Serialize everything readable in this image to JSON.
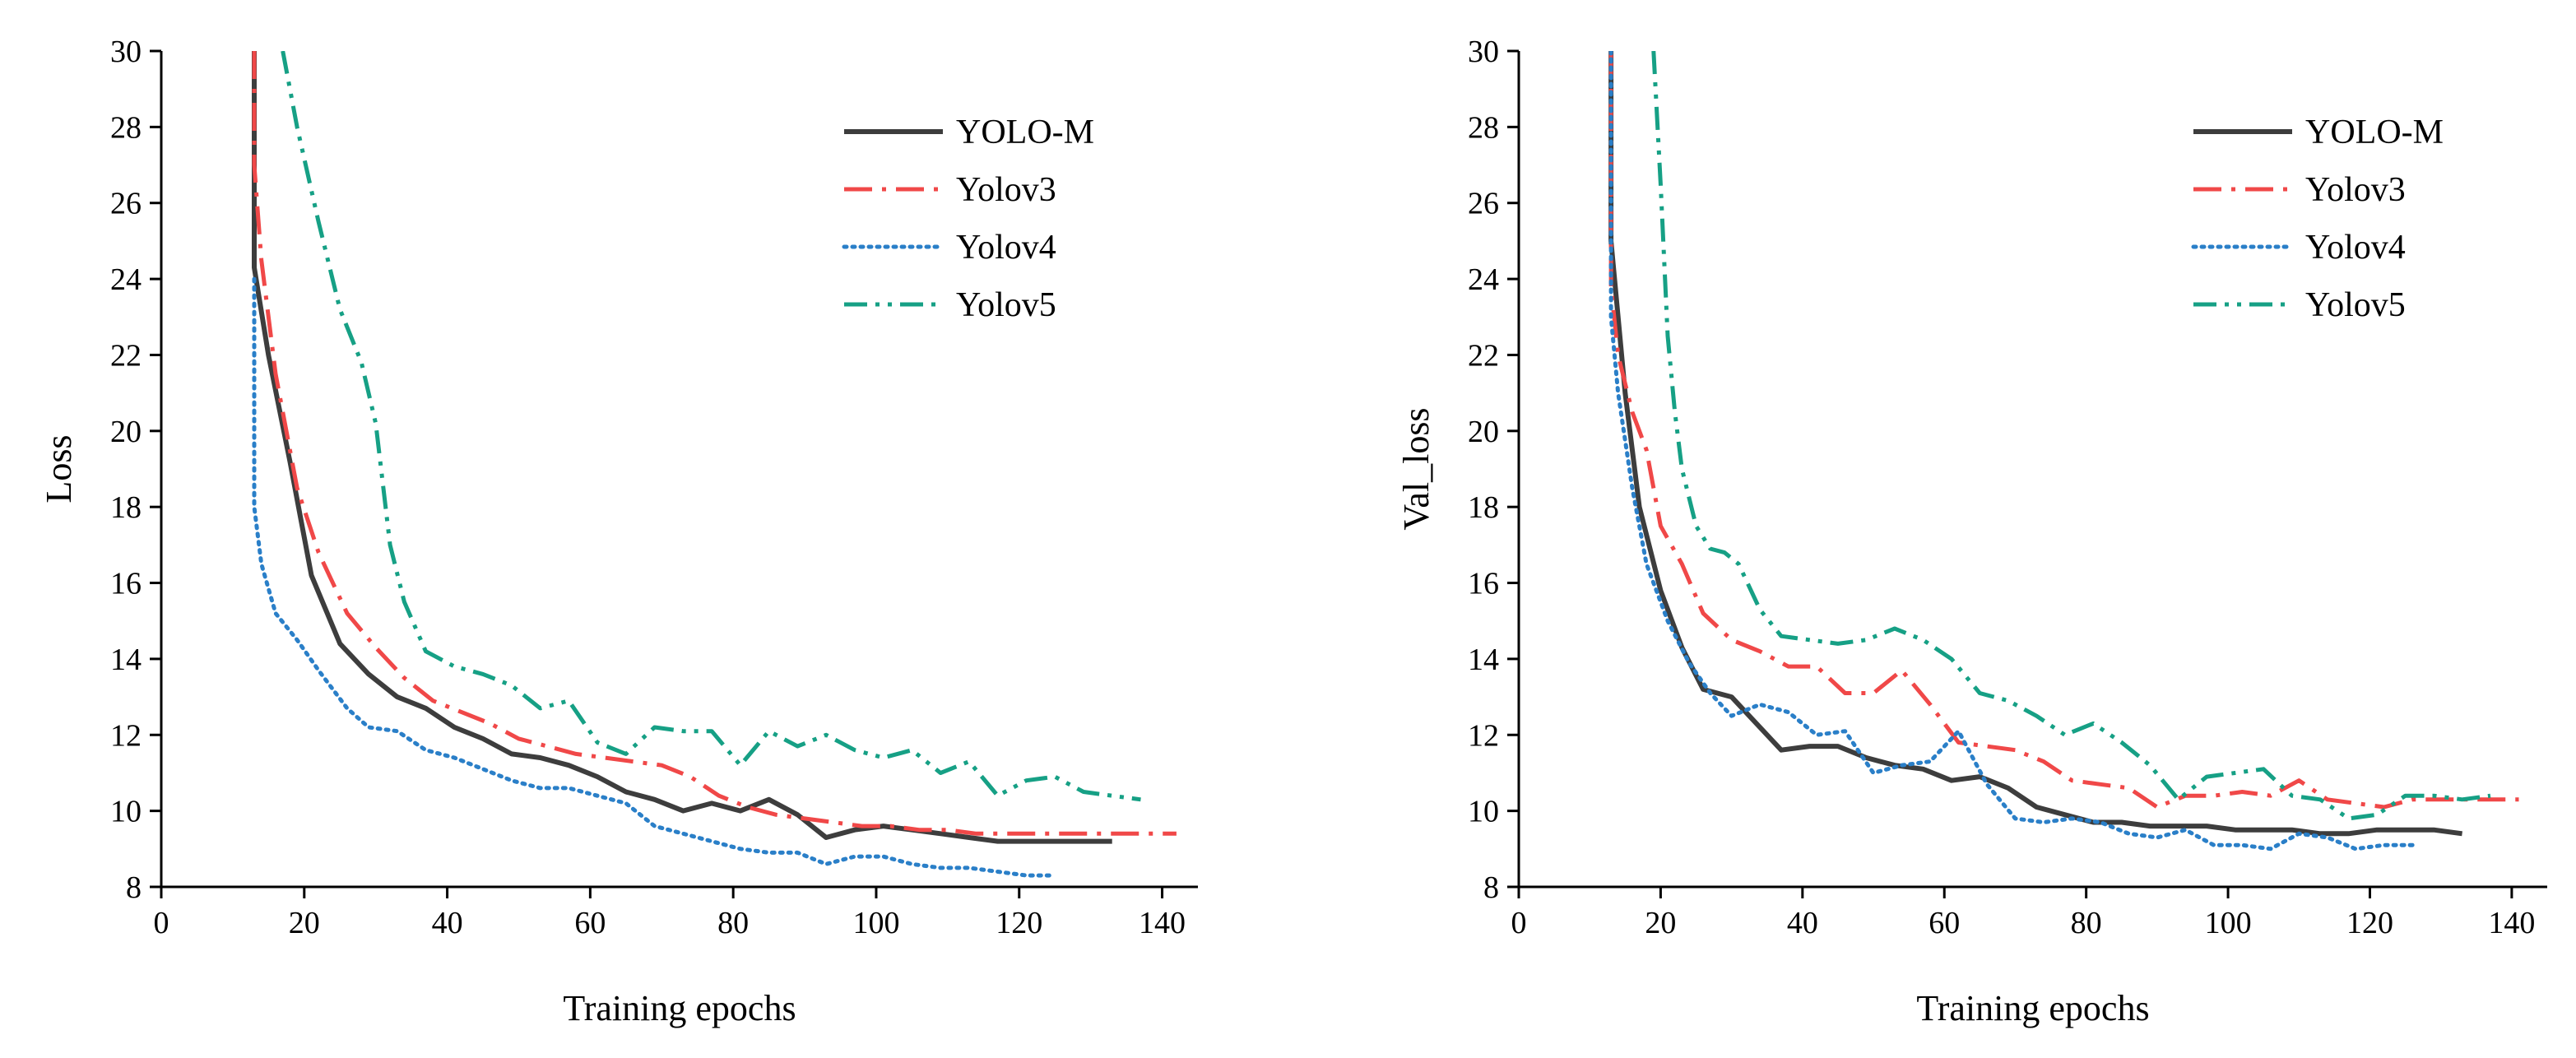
{
  "chart_data": [
    {
      "type": "line",
      "id": "loss",
      "title": "",
      "xlabel": "Training epochs",
      "ylabel": "Loss",
      "xlim": [
        0,
        145
      ],
      "ylim": [
        8,
        30
      ],
      "xticks": [
        0,
        20,
        40,
        60,
        80,
        100,
        120,
        140
      ],
      "yticks": [
        8,
        10,
        12,
        14,
        16,
        18,
        20,
        22,
        24,
        26,
        28,
        30
      ],
      "legend_position": "top-right",
      "series": [
        {
          "name": "YOLO-M",
          "color": "#3d3d3d",
          "dash": "solid",
          "x": [
            13,
            13,
            15,
            18,
            21,
            25,
            29,
            33,
            37,
            41,
            45,
            49,
            53,
            57,
            61,
            65,
            69,
            73,
            77,
            81,
            85,
            89,
            93,
            97,
            101,
            105,
            109,
            113,
            117,
            121,
            125,
            129,
            133
          ],
          "y": [
            30,
            24.3,
            22.0,
            19.2,
            16.2,
            14.4,
            13.6,
            13.0,
            12.7,
            12.2,
            11.9,
            11.5,
            11.4,
            11.2,
            10.9,
            10.5,
            10.3,
            10.0,
            10.2,
            10.0,
            10.3,
            9.9,
            9.3,
            9.5,
            9.6,
            9.5,
            9.4,
            9.3,
            9.2,
            9.2,
            9.2,
            9.2,
            9.2
          ]
        },
        {
          "name": "Yolov3",
          "color": "#f04848",
          "dash": "dashdot",
          "x": [
            13,
            13,
            14,
            16,
            19,
            22,
            26,
            30,
            34,
            38,
            42,
            46,
            50,
            54,
            58,
            62,
            66,
            70,
            74,
            78,
            82,
            86,
            90,
            94,
            98,
            102,
            106,
            110,
            114,
            118,
            122,
            126,
            130,
            134,
            138,
            142
          ],
          "y": [
            30,
            27.0,
            24.5,
            21.5,
            18.5,
            16.8,
            15.2,
            14.3,
            13.5,
            12.9,
            12.6,
            12.3,
            11.9,
            11.7,
            11.5,
            11.4,
            11.3,
            11.2,
            10.9,
            10.4,
            10.1,
            9.9,
            9.8,
            9.7,
            9.6,
            9.6,
            9.5,
            9.5,
            9.4,
            9.4,
            9.4,
            9.4,
            9.4,
            9.4,
            9.4,
            9.4
          ]
        },
        {
          "name": "Yolov4",
          "color": "#2a7fc8",
          "dash": "dotted",
          "x": [
            13,
            13,
            14,
            16,
            19,
            22,
            26,
            29,
            33,
            37,
            41,
            45,
            49,
            53,
            57,
            61,
            65,
            69,
            73,
            77,
            81,
            85,
            89,
            93,
            97,
            101,
            105,
            109,
            113,
            117,
            121,
            125
          ],
          "y": [
            24.0,
            18.0,
            16.5,
            15.2,
            14.5,
            13.7,
            12.7,
            12.2,
            12.1,
            11.6,
            11.4,
            11.1,
            10.8,
            10.6,
            10.6,
            10.4,
            10.2,
            9.6,
            9.4,
            9.2,
            9.0,
            8.9,
            8.9,
            8.6,
            8.8,
            8.8,
            8.6,
            8.5,
            8.5,
            8.4,
            8.3,
            8.3
          ]
        },
        {
          "name": "Yolov5",
          "color": "#16a085",
          "dash": "dashdotdot",
          "x": [
            17,
            19,
            22,
            25,
            28,
            30,
            32,
            34,
            37,
            41,
            45,
            49,
            53,
            57,
            61,
            65,
            69,
            73,
            77,
            81,
            85,
            89,
            93,
            97,
            101,
            105,
            109,
            113,
            117,
            121,
            125,
            129,
            133,
            137
          ],
          "y": [
            30,
            28.0,
            25.5,
            23.2,
            21.8,
            20.2,
            17.0,
            15.5,
            14.2,
            13.8,
            13.6,
            13.3,
            12.7,
            12.9,
            11.8,
            11.5,
            12.2,
            12.1,
            12.1,
            11.2,
            12.1,
            11.7,
            12.0,
            11.6,
            11.4,
            11.6,
            11.0,
            11.3,
            10.4,
            10.8,
            10.9,
            10.5,
            10.4,
            10.3
          ]
        }
      ]
    },
    {
      "type": "line",
      "id": "val_loss",
      "title": "",
      "xlabel": "Training epochs",
      "ylabel": "Val_loss",
      "xlim": [
        0,
        145
      ],
      "ylim": [
        8,
        30
      ],
      "xticks": [
        0,
        20,
        40,
        60,
        80,
        100,
        120,
        140
      ],
      "yticks": [
        8,
        10,
        12,
        14,
        16,
        18,
        20,
        22,
        24,
        26,
        28,
        30
      ],
      "legend_position": "top-right",
      "series": [
        {
          "name": "YOLO-M",
          "color": "#3d3d3d",
          "dash": "solid",
          "x": [
            13,
            13,
            15,
            17,
            20,
            23,
            26,
            30,
            33,
            37,
            41,
            45,
            49,
            53,
            57,
            61,
            65,
            69,
            73,
            77,
            81,
            85,
            89,
            93,
            97,
            101,
            105,
            109,
            113,
            117,
            121,
            125,
            129,
            133
          ],
          "y": [
            30,
            25.0,
            21.0,
            18.0,
            15.8,
            14.3,
            13.2,
            13.0,
            12.4,
            11.6,
            11.7,
            11.7,
            11.4,
            11.2,
            11.1,
            10.8,
            10.9,
            10.6,
            10.1,
            9.9,
            9.7,
            9.7,
            9.6,
            9.6,
            9.6,
            9.5,
            9.5,
            9.5,
            9.4,
            9.4,
            9.5,
            9.5,
            9.5,
            9.4
          ]
        },
        {
          "name": "Yolov3",
          "color": "#f04848",
          "dash": "dashdot",
          "x": [
            13,
            13,
            14,
            16,
            18,
            20,
            23,
            26,
            30,
            34,
            38,
            42,
            46,
            50,
            54,
            58,
            62,
            66,
            70,
            74,
            78,
            82,
            86,
            90,
            94,
            98,
            102,
            106,
            110,
            114,
            118,
            122,
            126,
            130,
            134,
            138,
            141
          ],
          "y": [
            30,
            23.8,
            22.0,
            20.5,
            19.5,
            17.5,
            16.5,
            15.2,
            14.5,
            14.2,
            13.8,
            13.8,
            13.1,
            13.1,
            13.7,
            12.8,
            11.8,
            11.7,
            11.6,
            11.3,
            10.8,
            10.7,
            10.6,
            10.1,
            10.4,
            10.4,
            10.5,
            10.4,
            10.8,
            10.3,
            10.2,
            10.1,
            10.3,
            10.3,
            10.3,
            10.3,
            10.3
          ]
        },
        {
          "name": "Yolov4",
          "color": "#2a7fc8",
          "dash": "dotted",
          "x": [
            13,
            13,
            14,
            16,
            18,
            21,
            24,
            27,
            30,
            34,
            38,
            42,
            46,
            50,
            54,
            58,
            62,
            66,
            70,
            74,
            78,
            82,
            86,
            90,
            94,
            98,
            102,
            106,
            110,
            114,
            118,
            122,
            126
          ],
          "y": [
            30,
            23.0,
            21.0,
            18.5,
            16.5,
            15.0,
            13.9,
            13.1,
            12.5,
            12.8,
            12.6,
            12.0,
            12.1,
            11.0,
            11.2,
            11.3,
            12.1,
            10.7,
            9.8,
            9.7,
            9.8,
            9.7,
            9.4,
            9.3,
            9.5,
            9.1,
            9.1,
            9.0,
            9.4,
            9.3,
            9.0,
            9.1,
            9.1
          ]
        },
        {
          "name": "Yolov5",
          "color": "#16a085",
          "dash": "dashdotdot",
          "x": [
            19,
            20,
            21,
            22,
            23,
            25,
            27,
            29,
            31,
            34,
            37,
            41,
            45,
            49,
            53,
            57,
            61,
            65,
            69,
            73,
            77,
            81,
            85,
            89,
            93,
            97,
            101,
            105,
            109,
            113,
            117,
            121,
            125,
            129,
            133,
            137
          ],
          "y": [
            30,
            26.5,
            22.5,
            20.5,
            19.0,
            17.5,
            16.9,
            16.8,
            16.5,
            15.3,
            14.6,
            14.5,
            14.4,
            14.5,
            14.8,
            14.5,
            14.0,
            13.1,
            12.9,
            12.5,
            12.0,
            12.3,
            11.8,
            11.2,
            10.3,
            10.9,
            11.0,
            11.1,
            10.4,
            10.3,
            9.8,
            9.9,
            10.4,
            10.4,
            10.3,
            10.4
          ]
        }
      ]
    }
  ]
}
